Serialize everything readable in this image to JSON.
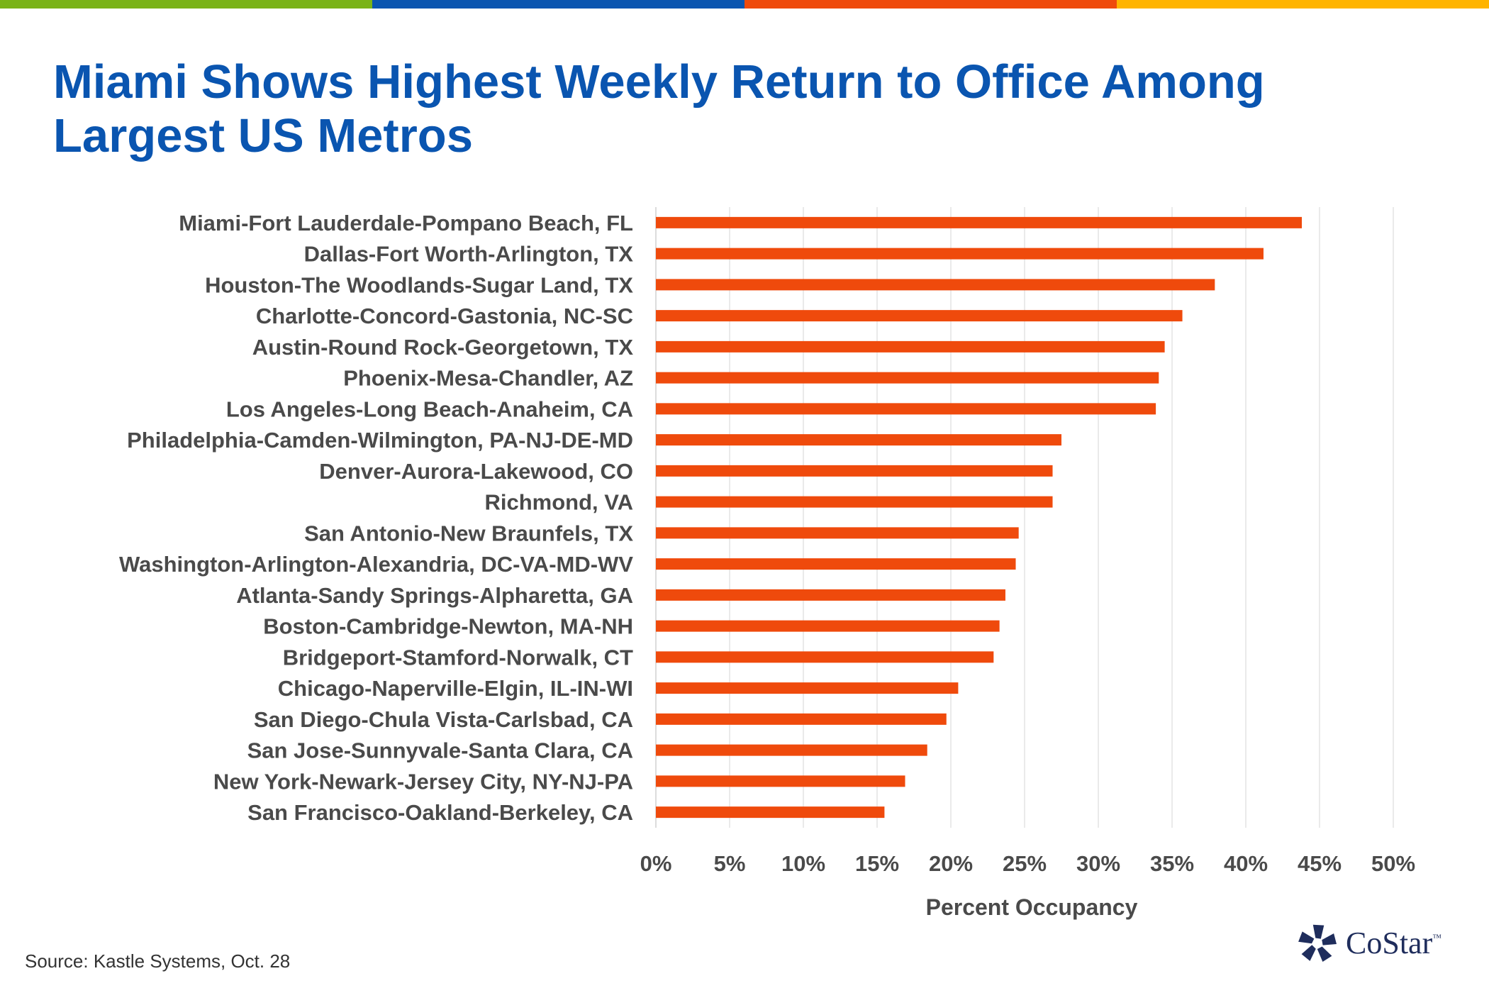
{
  "title": "Miami Shows Highest Weekly Return to Office Among Largest US Metros",
  "source": "Source: Kastle Systems, Oct. 28",
  "logo": {
    "text": "CoStar",
    "tm": "™",
    "icon": "costar-star-icon",
    "color": "#1f2d5c"
  },
  "colors": {
    "title": "#0a55b0",
    "bar": "#ef4a0c",
    "topbar": [
      "#7ab317",
      "#0a55b0",
      "#ef4a0c",
      "#ffb400"
    ]
  },
  "chart_data": {
    "type": "bar",
    "orientation": "horizontal",
    "categories": [
      "Miami-Fort Lauderdale-Pompano Beach, FL",
      "Dallas-Fort Worth-Arlington, TX",
      "Houston-The Woodlands-Sugar Land, TX",
      "Charlotte-Concord-Gastonia, NC-SC",
      "Austin-Round Rock-Georgetown, TX",
      "Phoenix-Mesa-Chandler, AZ",
      "Los Angeles-Long Beach-Anaheim, CA",
      "Philadelphia-Camden-Wilmington, PA-NJ-DE-MD",
      "Denver-Aurora-Lakewood, CO",
      "Richmond, VA",
      "San Antonio-New Braunfels, TX",
      "Washington-Arlington-Alexandria, DC-VA-MD-WV",
      "Atlanta-Sandy Springs-Alpharetta, GA",
      "Boston-Cambridge-Newton, MA-NH",
      "Bridgeport-Stamford-Norwalk, CT",
      "Chicago-Naperville-Elgin, IL-IN-WI",
      "San Diego-Chula Vista-Carlsbad, CA",
      "San Jose-Sunnyvale-Santa Clara, CA",
      "New York-Newark-Jersey City, NY-NJ-PA",
      "San Francisco-Oakland-Berkeley, CA"
    ],
    "values": [
      43.8,
      41.2,
      37.9,
      35.7,
      34.5,
      34.1,
      33.9,
      27.5,
      26.9,
      26.9,
      24.6,
      24.4,
      23.7,
      23.3,
      22.9,
      20.5,
      19.7,
      18.4,
      16.9,
      15.5
    ],
    "xlabel": "Percent Occupancy",
    "ylabel": "",
    "xlim": [
      0,
      50
    ],
    "xticks": [
      0,
      5,
      10,
      15,
      20,
      25,
      30,
      35,
      40,
      45,
      50
    ],
    "tick_format": "percent",
    "grid": "vertical",
    "legend": "none"
  }
}
